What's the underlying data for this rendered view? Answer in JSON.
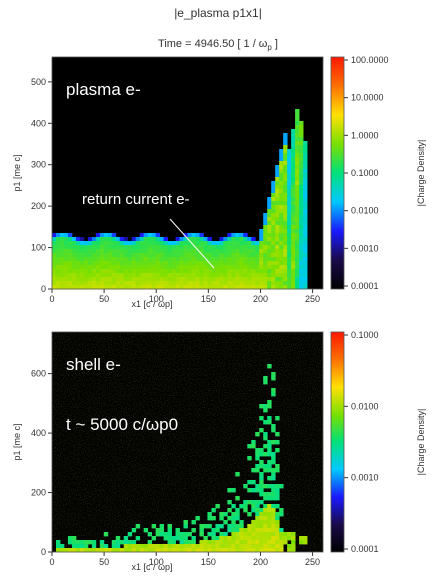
{
  "header": {
    "title": "|e_plasma p1x1|",
    "time_label": "Time =  4946.50 [ 1 / ω",
    "time_sub": "p",
    "time_close": " ]"
  },
  "colors": {
    "colormap": [
      "#000000",
      "#1a0a4a",
      "#1a1aff",
      "#00c8ff",
      "#00e07a",
      "#7ae000",
      "#ffe000",
      "#ff7000",
      "#ff1800"
    ]
  },
  "chart_data": [
    {
      "type": "heatmap",
      "title": "",
      "xlabel": "x1 [c / ωp]",
      "ylabel": "p1 [me c]",
      "xlim": [
        0,
        260
      ],
      "ylim": [
        0,
        560
      ],
      "xticks": [
        0,
        50,
        100,
        150,
        200,
        250
      ],
      "yticks": [
        0,
        100,
        200,
        300,
        400,
        500
      ],
      "colorbar": {
        "label": "|Charge Density|",
        "scale": "log",
        "ticks": [
          "100.0000",
          "10.0000",
          "1.0000",
          "0.1000",
          "0.0100",
          "0.0010",
          "0.0001"
        ]
      },
      "annotations": [
        "plasma e-",
        "return current e-"
      ]
    },
    {
      "type": "heatmap",
      "title": "",
      "xlabel": "x1 [c / ωp]",
      "ylabel": "p1 [me c]",
      "xlim": [
        0,
        260
      ],
      "ylim": [
        0,
        740
      ],
      "xticks": [
        0,
        50,
        100,
        150,
        200,
        250
      ],
      "yticks": [
        0,
        200,
        400,
        600
      ],
      "colorbar": {
        "label": "|Charge Density|",
        "scale": "log",
        "ticks": [
          "0.1000",
          "0.0100",
          "0.0010",
          "0.0001"
        ]
      },
      "annotations": [
        "shell e-",
        "t ~ 5000 c/ωp0"
      ]
    }
  ]
}
